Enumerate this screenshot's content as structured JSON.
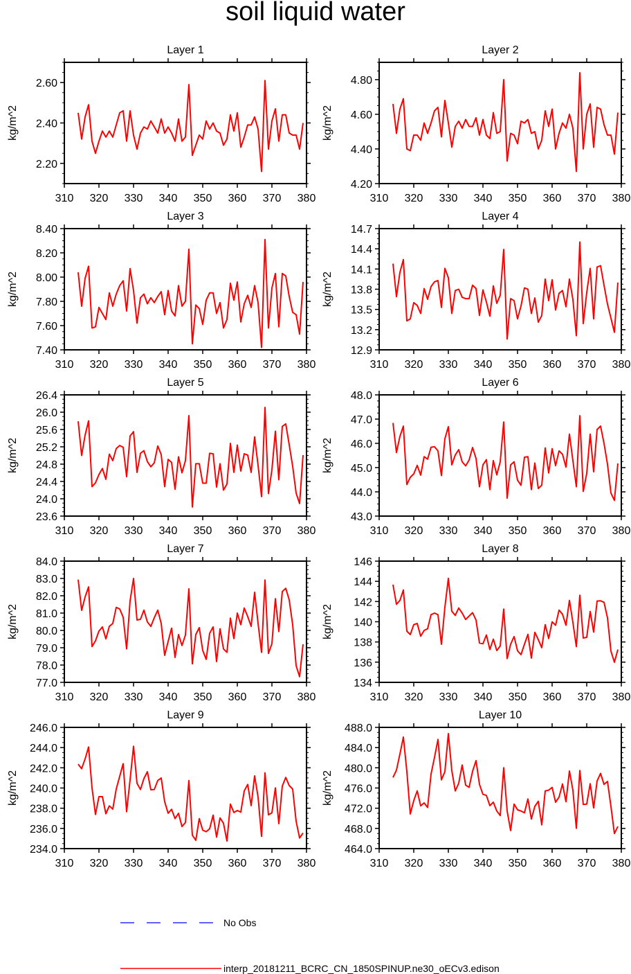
{
  "title": "soil liquid water",
  "legend": {
    "obs_label": "No Obs",
    "obs_color": "#0000ff",
    "model_label": "interp_20181211_BCRC_CN_1850SPINUP.ne30_oECv3.edison",
    "model_color": "#ff0000"
  },
  "chart_data": [
    {
      "type": "line",
      "title": "Layer 1",
      "ylabel": "kg/m^2",
      "xlabel": "",
      "xlim": [
        310,
        380
      ],
      "ylim": [
        2.1,
        2.7
      ],
      "xticks": [
        "310",
        "320",
        "330",
        "340",
        "350",
        "360",
        "370",
        "380"
      ],
      "yticks": [
        "2.20",
        "2.40",
        "2.60"
      ],
      "x_start": 314,
      "values": [
        2.45,
        2.32,
        2.43,
        2.49,
        2.31,
        2.25,
        2.31,
        2.36,
        2.33,
        2.36,
        2.33,
        2.39,
        2.45,
        2.46,
        2.31,
        2.46,
        2.34,
        2.27,
        2.35,
        2.38,
        2.37,
        2.41,
        2.38,
        2.35,
        2.42,
        2.35,
        2.38,
        2.35,
        2.31,
        2.42,
        2.31,
        2.33,
        2.59,
        2.24,
        2.29,
        2.34,
        2.32,
        2.41,
        2.37,
        2.4,
        2.36,
        2.35,
        2.29,
        2.32,
        2.44,
        2.36,
        2.45,
        2.28,
        2.33,
        2.39,
        2.39,
        2.43,
        2.37,
        2.16,
        2.61,
        2.27,
        2.41,
        2.47,
        2.31,
        2.44,
        2.44,
        2.35,
        2.34,
        2.34,
        2.27,
        2.4
      ]
    },
    {
      "type": "line",
      "title": "Layer 2",
      "ylabel": "kg/m^2",
      "xlabel": "",
      "xlim": [
        310,
        380
      ],
      "ylim": [
        4.2,
        4.9
      ],
      "xticks": [
        "310",
        "320",
        "330",
        "340",
        "350",
        "360",
        "370",
        "380"
      ],
      "yticks": [
        "4.20",
        "4.40",
        "4.60",
        "4.80"
      ],
      "x_start": 314,
      "values": [
        4.66,
        4.49,
        4.63,
        4.69,
        4.4,
        4.39,
        4.48,
        4.48,
        4.45,
        4.55,
        4.49,
        4.55,
        4.62,
        4.64,
        4.47,
        4.68,
        4.55,
        4.41,
        4.53,
        4.56,
        4.52,
        4.57,
        4.53,
        4.53,
        4.58,
        4.48,
        4.57,
        4.48,
        4.46,
        4.61,
        4.49,
        4.5,
        4.8,
        4.33,
        4.49,
        4.48,
        4.43,
        4.56,
        4.55,
        4.57,
        4.49,
        4.5,
        4.4,
        4.45,
        4.62,
        4.53,
        4.63,
        4.4,
        4.49,
        4.55,
        4.52,
        4.6,
        4.52,
        4.27,
        4.84,
        4.4,
        4.6,
        4.66,
        4.41,
        4.64,
        4.63,
        4.54,
        4.48,
        4.48,
        4.37,
        4.61
      ]
    },
    {
      "type": "line",
      "title": "Layer 3",
      "ylabel": "kg/m^2",
      "xlabel": "",
      "xlim": [
        310,
        380
      ],
      "ylim": [
        7.4,
        8.4
      ],
      "xticks": [
        "310",
        "320",
        "330",
        "340",
        "350",
        "360",
        "370",
        "380"
      ],
      "yticks": [
        "7.40",
        "7.60",
        "7.80",
        "8.00",
        "8.20",
        "8.40"
      ],
      "x_start": 314,
      "values": [
        8.04,
        7.76,
        7.99,
        8.09,
        7.58,
        7.59,
        7.75,
        7.7,
        7.65,
        7.87,
        7.76,
        7.86,
        7.93,
        7.97,
        7.72,
        8.07,
        7.89,
        7.62,
        7.83,
        7.86,
        7.78,
        7.83,
        7.79,
        7.84,
        7.88,
        7.69,
        7.89,
        7.72,
        7.68,
        7.93,
        7.76,
        7.8,
        8.23,
        7.45,
        7.77,
        7.74,
        7.61,
        7.81,
        7.87,
        7.87,
        7.7,
        7.79,
        7.58,
        7.65,
        7.95,
        7.81,
        7.96,
        7.63,
        7.78,
        7.85,
        7.75,
        7.93,
        7.79,
        7.42,
        8.31,
        7.58,
        7.91,
        8.03,
        7.59,
        8.03,
        8.01,
        7.84,
        7.71,
        7.69,
        7.53,
        7.96
      ]
    },
    {
      "type": "line",
      "title": "Layer 4",
      "ylabel": "kg/m^2",
      "xlabel": "",
      "xlim": [
        310,
        380
      ],
      "ylim": [
        12.9,
        14.7
      ],
      "xticks": [
        "310",
        "320",
        "330",
        "340",
        "350",
        "360",
        "370",
        "380"
      ],
      "yticks": [
        "12.9",
        "13.2",
        "13.5",
        "13.8",
        "14.1",
        "14.4",
        "14.7"
      ],
      "x_start": 314,
      "values": [
        14.18,
        13.69,
        14.05,
        14.24,
        13.33,
        13.36,
        13.6,
        13.56,
        13.44,
        13.81,
        13.65,
        13.84,
        13.91,
        13.93,
        13.53,
        14.11,
        13.97,
        13.44,
        13.78,
        13.8,
        13.68,
        13.66,
        13.66,
        13.86,
        13.81,
        13.41,
        13.79,
        13.61,
        13.4,
        13.85,
        13.59,
        13.71,
        14.39,
        13.06,
        13.66,
        13.63,
        13.36,
        13.55,
        13.82,
        13.8,
        13.44,
        13.67,
        13.31,
        13.41,
        13.95,
        13.63,
        13.94,
        13.49,
        13.74,
        13.78,
        13.54,
        13.95,
        13.65,
        13.11,
        14.5,
        13.29,
        13.75,
        14.11,
        13.36,
        14.13,
        14.15,
        13.86,
        13.58,
        13.37,
        13.16,
        13.9
      ]
    },
    {
      "type": "line",
      "title": "Layer 5",
      "ylabel": "kg/m^2",
      "xlabel": "",
      "xlim": [
        310,
        380
      ],
      "ylim": [
        23.6,
        26.4
      ],
      "xticks": [
        "310",
        "320",
        "330",
        "340",
        "350",
        "360",
        "370",
        "380"
      ],
      "yticks": [
        "23.6",
        "24.0",
        "24.4",
        "24.8",
        "25.2",
        "25.6",
        "26.0",
        "26.4"
      ],
      "x_start": 314,
      "values": [
        25.79,
        25.0,
        25.47,
        25.8,
        24.28,
        24.37,
        24.56,
        24.7,
        24.45,
        25.03,
        24.88,
        25.16,
        25.23,
        25.19,
        24.51,
        25.45,
        25.55,
        24.61,
        25.05,
        25.11,
        24.86,
        24.74,
        24.83,
        25.22,
        25.02,
        24.28,
        24.91,
        24.84,
        24.22,
        24.97,
        24.6,
        24.88,
        25.92,
        23.81,
        24.81,
        24.81,
        24.36,
        24.36,
        25.05,
        25.04,
        24.27,
        24.81,
        24.2,
        24.34,
        25.28,
        24.61,
        25.24,
        24.64,
        25.04,
        25.01,
        24.61,
        25.43,
        24.77,
        24.05,
        26.11,
        24.12,
        24.67,
        25.56,
        24.44,
        25.67,
        25.73,
        25.25,
        24.75,
        24.13,
        23.89,
        25.01
      ]
    },
    {
      "type": "line",
      "title": "Layer 6",
      "ylabel": "kg/m^2",
      "xlabel": "",
      "xlim": [
        310,
        380
      ],
      "ylim": [
        43.0,
        48.0
      ],
      "xticks": [
        "310",
        "320",
        "330",
        "340",
        "350",
        "360",
        "370",
        "380"
      ],
      "yticks": [
        "43.0",
        "44.0",
        "45.0",
        "46.0",
        "47.0",
        "48.0"
      ],
      "x_start": 314,
      "values": [
        46.84,
        45.62,
        46.29,
        46.71,
        44.3,
        44.6,
        44.74,
        45.09,
        44.69,
        45.45,
        45.35,
        45.84,
        45.86,
        45.69,
        44.67,
        46.19,
        46.69,
        45.11,
        45.52,
        45.74,
        45.24,
        45.07,
        45.31,
        45.83,
        45.38,
        44.21,
        45.11,
        45.33,
        44.09,
        45.29,
        44.7,
        45.24,
        46.88,
        43.74,
        45.11,
        45.24,
        44.48,
        44.27,
        45.43,
        45.45,
        44.09,
        45.19,
        44.14,
        44.27,
        45.81,
        44.78,
        45.78,
        45.08,
        45.69,
        45.55,
        45.02,
        46.38,
        45.29,
        44.21,
        47.14,
        44.02,
        44.76,
        46.38,
        44.83,
        46.57,
        46.71,
        46.0,
        45.14,
        43.95,
        43.65,
        45.17
      ]
    },
    {
      "type": "line",
      "title": "Layer 7",
      "ylabel": "kg/m^2",
      "xlabel": "",
      "xlim": [
        310,
        380
      ],
      "ylim": [
        77.0,
        84.0
      ],
      "xticks": [
        "310",
        "320",
        "330",
        "340",
        "350",
        "360",
        "370",
        "380"
      ],
      "yticks": [
        "77.0",
        "78.0",
        "79.0",
        "80.0",
        "81.0",
        "82.0",
        "83.0",
        "84.0"
      ],
      "x_start": 314,
      "values": [
        82.93,
        81.16,
        81.93,
        82.51,
        79.07,
        79.4,
        79.96,
        80.2,
        79.51,
        80.23,
        80.4,
        81.33,
        81.24,
        80.76,
        78.93,
        81.71,
        83.0,
        80.6,
        80.64,
        81.17,
        80.49,
        80.23,
        80.73,
        81.17,
        80.4,
        78.56,
        79.36,
        80.13,
        78.44,
        79.76,
        79.13,
        79.73,
        82.4,
        78.07,
        79.76,
        80.16,
        78.84,
        78.33,
        79.83,
        80.2,
        78.2,
        80.09,
        78.93,
        78.73,
        80.71,
        79.53,
        81.0,
        80.33,
        81.29,
        80.8,
        80.23,
        82.2,
        80.4,
        78.73,
        82.91,
        78.67,
        79.23,
        81.83,
        79.93,
        82.24,
        82.43,
        81.76,
        80.33,
        77.96,
        77.33,
        79.2
      ]
    },
    {
      "type": "line",
      "title": "Layer 8",
      "ylabel": "kg/m^2",
      "xlabel": "",
      "xlim": [
        310,
        380
      ],
      "ylim": [
        134,
        146
      ],
      "xticks": [
        "310",
        "320",
        "330",
        "340",
        "350",
        "360",
        "370",
        "380"
      ],
      "yticks": [
        "134",
        "136",
        "138",
        "140",
        "142",
        "144",
        "146"
      ],
      "x_start": 314,
      "values": [
        143.67,
        141.73,
        142.11,
        143.14,
        139.07,
        138.73,
        139.71,
        139.83,
        138.57,
        139.14,
        139.3,
        140.7,
        140.86,
        140.7,
        137.77,
        141.43,
        144.29,
        141.04,
        140.63,
        141.36,
        140.86,
        140.22,
        140.56,
        140.9,
        140.17,
        137.89,
        137.82,
        138.69,
        137.25,
        138.27,
        137.15,
        137.61,
        141.25,
        136.35,
        137.77,
        138.53,
        137.13,
        136.74,
        137.77,
        138.75,
        136.4,
        138.96,
        138.23,
        137.43,
        139.71,
        138.34,
        139.99,
        139.65,
        141.15,
        140.74,
        139.65,
        142.11,
        139.94,
        137.54,
        142.62,
        138.39,
        138.46,
        141.02,
        138.98,
        142.05,
        142.07,
        141.93,
        140.4,
        137.09,
        135.99,
        137.25
      ]
    },
    {
      "type": "line",
      "title": "Layer 9",
      "ylabel": "kg/m^2",
      "xlabel": "",
      "xlim": [
        310,
        380
      ],
      "ylim": [
        234.0,
        246.0
      ],
      "xticks": [
        "310",
        "320",
        "330",
        "340",
        "350",
        "360",
        "370",
        "380"
      ],
      "yticks": [
        "234.0",
        "236.0",
        "238.0",
        "240.0",
        "242.0",
        "244.0",
        "246.0"
      ],
      "x_start": 314,
      "values": [
        242.36,
        241.91,
        242.87,
        244.06,
        240.01,
        237.38,
        239.14,
        239.14,
        237.45,
        238.23,
        237.91,
        239.9,
        241.15,
        242.41,
        237.65,
        240.81,
        244.13,
        240.47,
        239.85,
        240.93,
        241.61,
        239.83,
        239.85,
        240.74,
        240.99,
        238.64,
        237.5,
        237.89,
        236.97,
        237.5,
        236.19,
        236.58,
        240.74,
        235.33,
        234.82,
        236.97,
        235.83,
        235.67,
        235.96,
        237.31,
        235.14,
        237.04,
        236.51,
        234.75,
        238.41,
        237.57,
        237.77,
        237.61,
        239.71,
        240.35,
        238.25,
        241.2,
        239.1,
        235.21,
        241.5,
        237.34,
        237.54,
        240.01,
        236.47,
        240.19,
        241.04,
        240.24,
        239.9,
        236.7,
        235.05,
        235.55
      ]
    },
    {
      "type": "line",
      "title": "Layer 10",
      "ylabel": "kg/m^2",
      "xlabel": "",
      "xlim": [
        310,
        380
      ],
      "ylim": [
        464.0,
        488.0
      ],
      "xticks": [
        "310",
        "320",
        "330",
        "340",
        "350",
        "360",
        "370",
        "380"
      ],
      "yticks": [
        "464.0",
        "468.0",
        "472.0",
        "476.0",
        "480.0",
        "484.0",
        "488.0"
      ],
      "x_start": 314,
      "values": [
        478.08,
        479.54,
        482.74,
        486.08,
        479.31,
        470.86,
        473.51,
        475.43,
        472.46,
        473.05,
        472.14,
        478.77,
        482.06,
        485.62,
        477.62,
        479.22,
        486.77,
        479.45,
        475.43,
        476.94,
        480.55,
        476.57,
        476.12,
        479.31,
        481.42,
        476.71,
        474.74,
        474.53,
        472.5,
        473.19,
        471.45,
        470.54,
        480.0,
        471.45,
        467.57,
        472.82,
        471.68,
        471.45,
        471.09,
        473.83,
        469.85,
        472.37,
        473.37,
        468.71,
        475.43,
        475.57,
        476.12,
        473.19,
        474.19,
        476.8,
        473.28,
        479.36,
        475.57,
        468.02,
        479.45,
        472.73,
        472.82,
        476.85,
        472.05,
        477.4,
        478.9,
        476.71,
        477.3,
        472.37,
        466.97,
        468.39
      ]
    }
  ]
}
